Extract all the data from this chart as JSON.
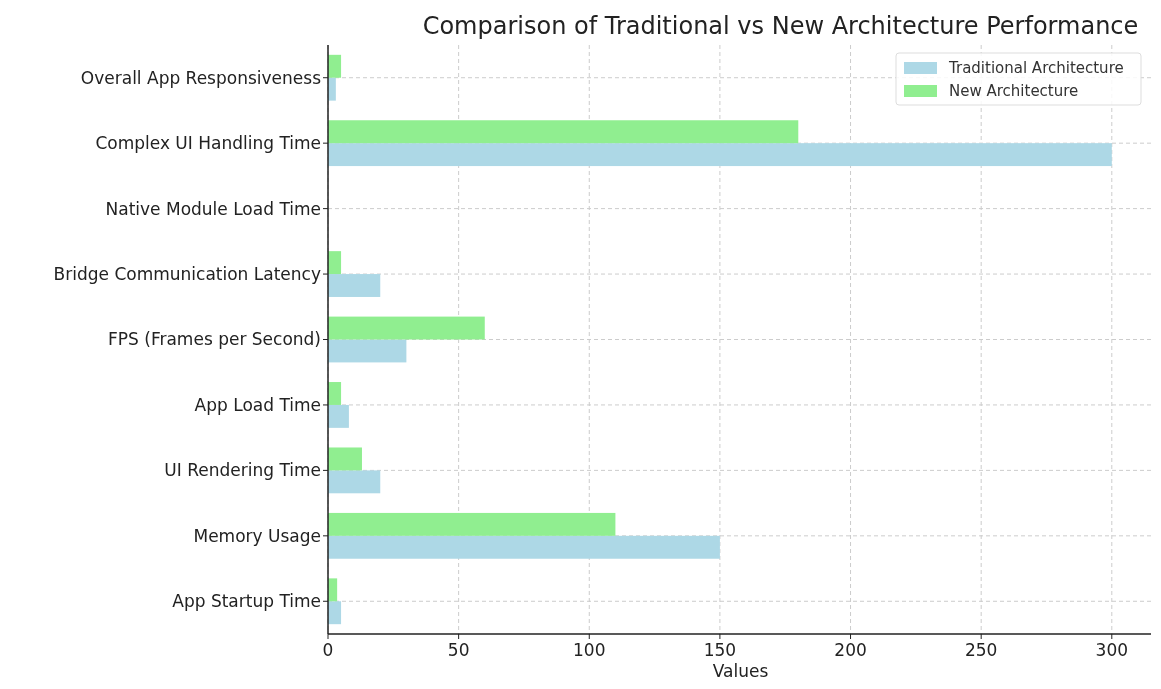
{
  "chart_data": {
    "type": "bar",
    "orientation": "horizontal",
    "title": "Comparison of Traditional vs New Architecture Performance",
    "xlabel": "Values",
    "categories": [
      "Overall App Responsiveness",
      "Complex UI Handling Time",
      "Native Module Load Time",
      "Bridge Communication Latency",
      "FPS (Frames per Second)",
      "App Load Time",
      "UI Rendering Time",
      "Memory Usage",
      "App Startup Time"
    ],
    "series": [
      {
        "name": "Traditional Architecture",
        "color": "#add8e6",
        "values": [
          3,
          300,
          0,
          20,
          30,
          8,
          20,
          150,
          5
        ]
      },
      {
        "name": "New Architecture",
        "color": "#90ee90",
        "values": [
          5,
          180,
          0,
          5,
          60,
          5,
          13,
          110,
          3.5
        ]
      }
    ],
    "xlim": [
      0,
      315
    ],
    "xticks": [
      0,
      50,
      100,
      150,
      200,
      250,
      300
    ],
    "grid": true,
    "legend": "top right"
  }
}
